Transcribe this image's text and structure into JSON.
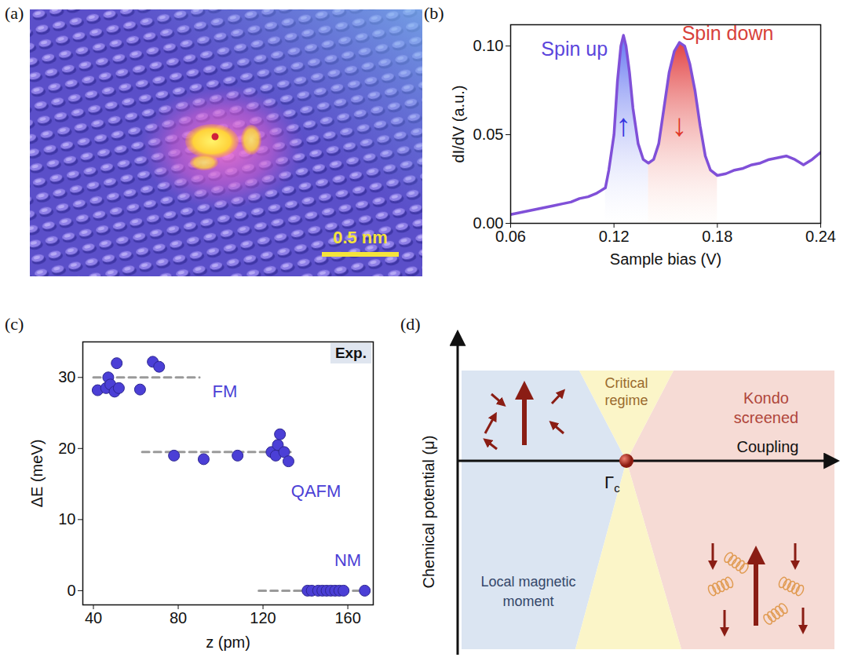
{
  "image": {
    "title": "(a)",
    "scale_bar": "0.5 nm"
  },
  "chart_data": [
    {
      "type": "line",
      "title": "(b)",
      "x": [
        0.06,
        0.065,
        0.07,
        0.075,
        0.08,
        0.085,
        0.09,
        0.095,
        0.1,
        0.105,
        0.11,
        0.115,
        0.117,
        0.12,
        0.122,
        0.124,
        0.1255,
        0.127,
        0.129,
        0.131,
        0.134,
        0.137,
        0.14,
        0.143,
        0.146,
        0.149,
        0.152,
        0.155,
        0.158,
        0.161,
        0.164,
        0.167,
        0.17,
        0.173,
        0.176,
        0.18,
        0.185,
        0.19,
        0.195,
        0.2,
        0.205,
        0.21,
        0.215,
        0.22,
        0.225,
        0.23,
        0.235,
        0.24
      ],
      "values": [
        0.005,
        0.006,
        0.007,
        0.008,
        0.009,
        0.01,
        0.011,
        0.012,
        0.014,
        0.015,
        0.017,
        0.02,
        0.03,
        0.05,
        0.08,
        0.1,
        0.106,
        0.1,
        0.085,
        0.065,
        0.045,
        0.036,
        0.034,
        0.036,
        0.045,
        0.065,
        0.085,
        0.097,
        0.102,
        0.1,
        0.09,
        0.075,
        0.055,
        0.038,
        0.03,
        0.027,
        0.028,
        0.03,
        0.031,
        0.033,
        0.034,
        0.036,
        0.037,
        0.038,
        0.036,
        0.033,
        0.036,
        0.04
      ],
      "color": "#8050d8",
      "xlim": [
        0.06,
        0.24
      ],
      "ylim": [
        0,
        0.112
      ],
      "xticks": [
        0.06,
        0.12,
        0.18,
        0.24
      ],
      "yticks": [
        {
          "value": 0,
          "label": "0.00"
        },
        {
          "value": 0.05,
          "label": "0.05"
        },
        {
          "value": 0.1,
          "label": "0.10"
        }
      ],
      "x_label": "Sample bias (V)",
      "y_label": "dI/dV (a.u.)",
      "annotations": [
        {
          "text": "Spin up",
          "x": 0.097,
          "y": 0.098,
          "color": "#5b45dc"
        },
        {
          "text": "Spin down",
          "x": 0.186,
          "y": 0.107,
          "color": "#d8413a"
        },
        {
          "text": "↑",
          "x": 0.1255,
          "y": 0.055,
          "color": "#3535e0"
        },
        {
          "text": "↓",
          "x": 0.158,
          "y": 0.055,
          "color": "#e0382a"
        }
      ]
    },
    {
      "type": "scatter",
      "title": "(c)",
      "x": [
        42,
        46,
        47,
        48,
        50,
        51,
        52,
        62,
        68,
        71,
        78,
        92,
        108,
        124,
        126,
        127,
        128,
        130,
        132,
        141,
        143,
        146,
        148,
        150,
        152,
        154,
        156,
        158,
        168
      ],
      "values": [
        28.2,
        28.5,
        30,
        29,
        28,
        32,
        28.5,
        28.3,
        32.2,
        31.5,
        19,
        18.5,
        19,
        19.5,
        19,
        20.5,
        22,
        19.5,
        18.2,
        0,
        0,
        0,
        0,
        0,
        0,
        0,
        0,
        0,
        0
      ],
      "color": "#4b3fd6",
      "xlim": [
        35,
        172
      ],
      "ylim": [
        -2,
        35
      ],
      "xticks": [
        40,
        80,
        120,
        160
      ],
      "yticks": [
        0,
        10,
        20,
        30
      ],
      "x_label": "z (pm)",
      "y_label": "ΔE (meV)",
      "reference_lines": [
        {
          "label": "FM",
          "value": 30,
          "x": [
            40,
            90
          ],
          "label_x": 102,
          "label_y": 28
        },
        {
          "label": "QAFM",
          "value": 19.5,
          "x": [
            63,
            135
          ],
          "label_x": 145,
          "label_y": 14
        },
        {
          "label": "NM",
          "value": 0,
          "x": [
            118,
            165
          ],
          "label_x": 160,
          "label_y": 4.2
        }
      ],
      "annotations": [
        {
          "text": "Exp."
        }
      ]
    }
  ],
  "diagram": {
    "title": "(d)",
    "y_axis": "Chemical potential (μ)",
    "x_axis": "Coupling",
    "regions": {
      "left": [
        "Local magnetic",
        "moment"
      ],
      "middle": [
        "Critical",
        "regime"
      ],
      "right": [
        "Kondo",
        "screened"
      ]
    },
    "critical_point": "Γc"
  }
}
